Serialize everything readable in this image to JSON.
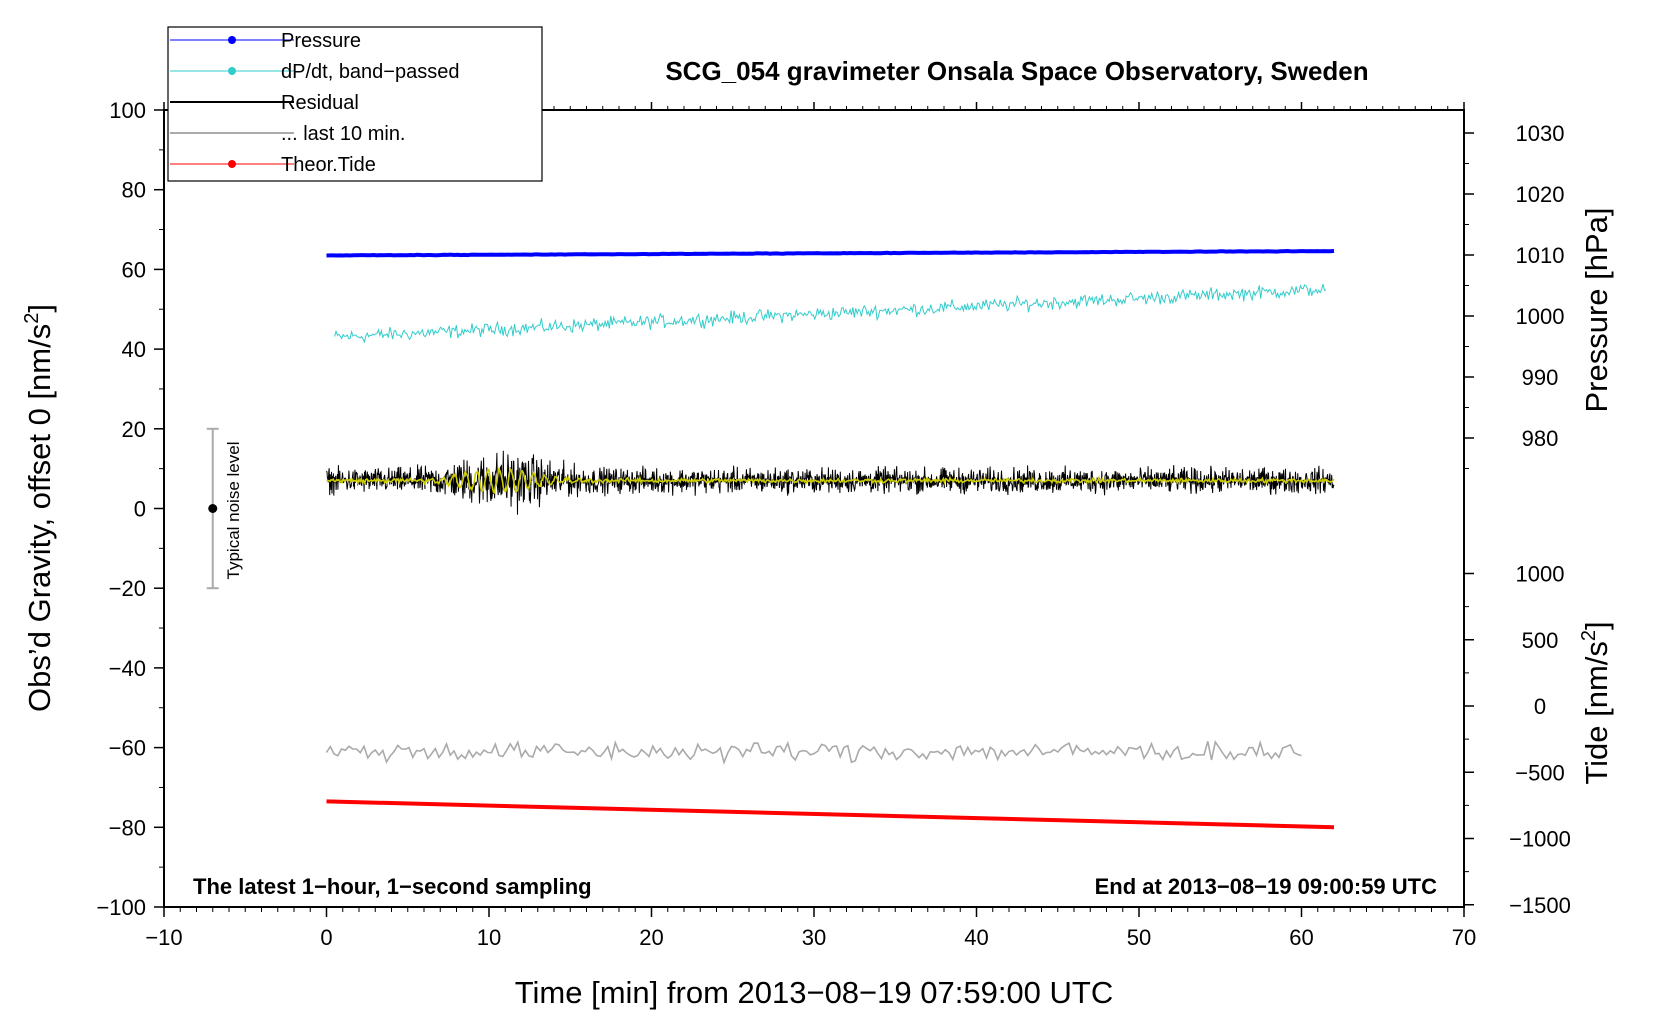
{
  "chart_data": {
    "type": "line",
    "title": "SCG_054 gravimeter Onsala Space Observatory, Sweden",
    "xlabel": "Time [min] from 2013−08−19 07:59:00 UTC",
    "ylabel_left": "Obs’d Gravity, offset 0 [nm/s",
    "ylabel_left_sup": "2",
    "ylabel_left_end": "]",
    "ylabel_right_pressure": "Pressure [hPa]",
    "ylabel_right_tide": "Tide [nm/s",
    "ylabel_right_tide_sup": "2",
    "ylabel_right_tide_end": "]",
    "xlim": [
      -10,
      70
    ],
    "ylim_left": [
      -100,
      100
    ],
    "pressure_ticks": [
      1030,
      1020,
      1010,
      1000,
      990,
      980
    ],
    "tide_ticks": [
      1000,
      500,
      0,
      -500,
      -1000,
      -1500
    ],
    "x_ticks": [
      -10,
      0,
      10,
      20,
      30,
      40,
      50,
      60,
      70
    ],
    "y_ticks": [
      100,
      80,
      60,
      40,
      20,
      0,
      -20,
      -40,
      -60,
      -80,
      -100
    ],
    "annotation_left": "The latest 1−hour, 1−second sampling",
    "annotation_right": "End at 2013−08−19 09:00:59 UTC",
    "noise_bar": {
      "label": "Typical noise level",
      "x": -7,
      "center": 0,
      "low": -20,
      "high": 20
    },
    "legend": [
      {
        "label": "Pressure",
        "color": "#0000ff",
        "marker": true
      },
      {
        "label": "dP/dt, band−passed",
        "color": "#33cccc",
        "marker": true
      },
      {
        "label": "Residual",
        "color": "#000000",
        "marker": false
      },
      {
        "label": "... last 10 min.",
        "color": "#aaaaaa",
        "marker": false
      },
      {
        "label": "Theor.Tide",
        "color": "#ff0000",
        "marker": true
      }
    ],
    "series": [
      {
        "name": "Pressure",
        "color": "#0000ff",
        "x_start": 0,
        "x_end": 62,
        "y_start": 63.5,
        "y_end": 64.6
      },
      {
        "name": "dP/dt, band−passed",
        "color": "#33cccc",
        "x_start": 0.5,
        "x_end": 61.5,
        "y_start": 43,
        "y_end": 55,
        "noise_amp": 2.5
      },
      {
        "name": "Residual",
        "color": "#000000",
        "x_start": 0,
        "x_end": 62,
        "y_mean": 7,
        "noise_amp": 4.5,
        "burst_center": 11,
        "burst_amp": 6
      },
      {
        "name": "Residual smoothed",
        "color": "#cccc00",
        "x_start": 0,
        "x_end": 62,
        "y_mean": 7,
        "noise_amp": 0.8,
        "burst_center": 10.5,
        "burst_amp": 3
      },
      {
        "name": "... last 10 min.",
        "color": "#aaaaaa",
        "x_start": 0,
        "x_end": 60,
        "y_mean": -61,
        "noise_amp": 3.5
      },
      {
        "name": "Theor.Tide",
        "color": "#ff0000",
        "x_start": 0,
        "x_end": 62,
        "y_start": -73.5,
        "y_end": -80
      }
    ]
  }
}
